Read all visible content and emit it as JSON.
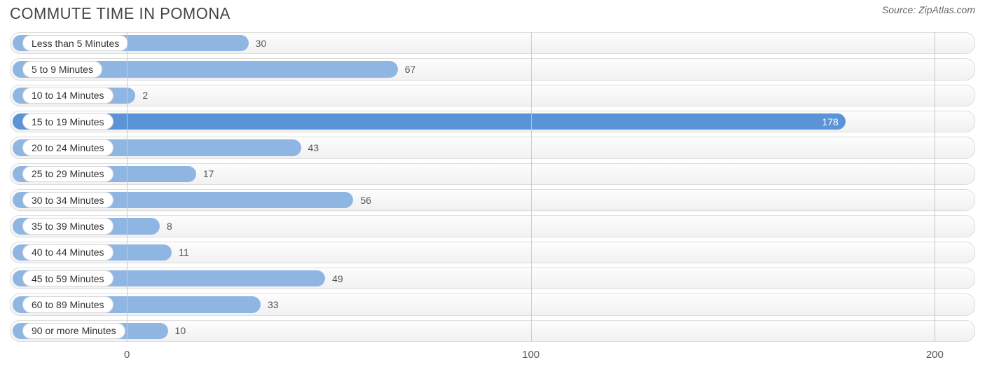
{
  "title": "COMMUTE TIME IN POMONA",
  "source_prefix": "Source: ",
  "source_name": "ZipAtlas.com",
  "chart": {
    "type": "bar-horizontal",
    "background_color": "#ffffff",
    "track_border_color": "#dddddd",
    "track_gradient_top": "#fdfdfd",
    "track_gradient_bottom": "#f1f1f1",
    "bar_color": "#8fb6e3",
    "highlight_bar_color": "#5a94d6",
    "grid_color": "#c8c8c8",
    "value_label_color_outside": "#555555",
    "value_label_color_inside": "#ffffff",
    "pill_bg": "#ffffff",
    "pill_border": "#d6d6d6",
    "label_fontsize": 14,
    "axis_fontsize": 15,
    "title_fontsize": 22,
    "title_color": "#444444",
    "xmin": -29,
    "xmax": 210,
    "ticks": [
      0,
      100,
      200
    ],
    "categories": [
      {
        "label": "Less than 5 Minutes",
        "value": 30,
        "highlight": false
      },
      {
        "label": "5 to 9 Minutes",
        "value": 67,
        "highlight": false
      },
      {
        "label": "10 to 14 Minutes",
        "value": 2,
        "highlight": false
      },
      {
        "label": "15 to 19 Minutes",
        "value": 178,
        "highlight": true
      },
      {
        "label": "20 to 24 Minutes",
        "value": 43,
        "highlight": false
      },
      {
        "label": "25 to 29 Minutes",
        "value": 17,
        "highlight": false
      },
      {
        "label": "30 to 34 Minutes",
        "value": 56,
        "highlight": false
      },
      {
        "label": "35 to 39 Minutes",
        "value": 8,
        "highlight": false
      },
      {
        "label": "40 to 44 Minutes",
        "value": 11,
        "highlight": false
      },
      {
        "label": "45 to 59 Minutes",
        "value": 49,
        "highlight": false
      },
      {
        "label": "60 to 89 Minutes",
        "value": 33,
        "highlight": false
      },
      {
        "label": "90 or more Minutes",
        "value": 10,
        "highlight": false
      }
    ]
  }
}
